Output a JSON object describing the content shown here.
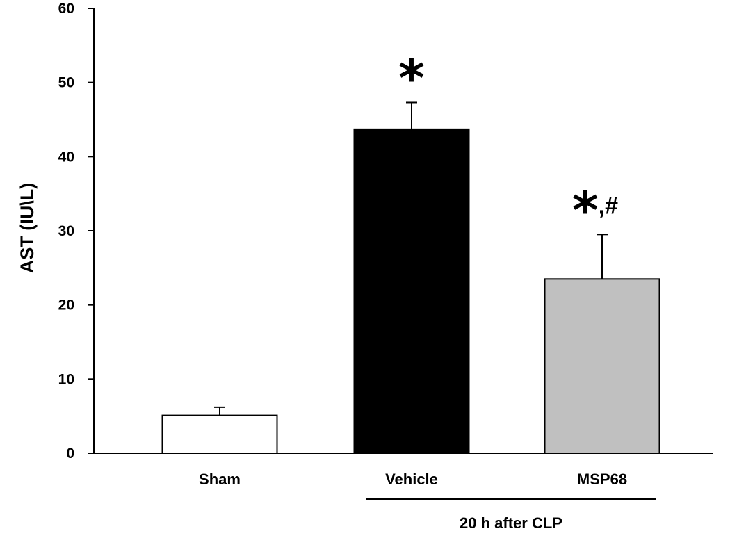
{
  "chart_data": {
    "type": "bar",
    "title": "",
    "xlabel": "",
    "ylabel": "AST (IU\\L)",
    "ylim": [
      0,
      60
    ],
    "yticks": [
      0,
      10,
      20,
      30,
      40,
      50,
      60
    ],
    "grid": false,
    "categories": [
      "Sham",
      "Vehicle",
      "MSP68"
    ],
    "values": [
      5.1,
      43.7,
      23.5
    ],
    "errors": [
      1.1,
      3.6,
      6.0
    ],
    "bar_colors": [
      "#ffffff",
      "#000000",
      "#c0c0c0"
    ],
    "significance": [
      {
        "category": "Vehicle",
        "star": "*",
        "extra": ""
      },
      {
        "category": "MSP68",
        "star": "*",
        "extra": ",#"
      }
    ],
    "group_label": {
      "text": "20 h after CLP",
      "categories": [
        "Vehicle",
        "MSP68"
      ]
    }
  }
}
